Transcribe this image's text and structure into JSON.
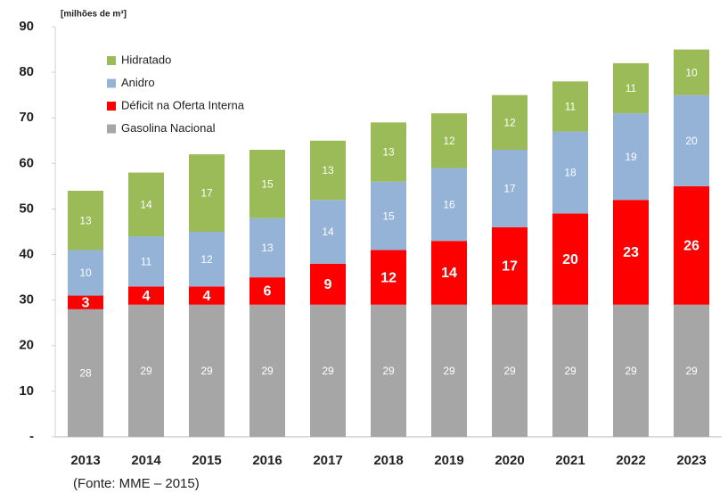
{
  "chart_data": {
    "type": "stacked_bar",
    "unit_label": "[milhões de m³]",
    "source": "(Fonte: MME – 2015)",
    "categories": [
      "2013",
      "2014",
      "2015",
      "2016",
      "2017",
      "2018",
      "2019",
      "2020",
      "2021",
      "2022",
      "2023"
    ],
    "series": [
      {
        "name": "Gasolina Nacional",
        "color": "#a6a6a6",
        "values": [
          28,
          29,
          29,
          29,
          29,
          29,
          29,
          29,
          29,
          29,
          29
        ]
      },
      {
        "name": "Déficit na Oferta Interna",
        "color": "#ff0000",
        "values": [
          3,
          4,
          4,
          6,
          9,
          12,
          14,
          17,
          20,
          23,
          26
        ]
      },
      {
        "name": "Anidro",
        "color": "#95b3d7",
        "values": [
          10,
          11,
          12,
          13,
          14,
          15,
          16,
          17,
          18,
          19,
          20
        ]
      },
      {
        "name": "Hidratado",
        "color": "#9bbb59",
        "values": [
          13,
          14,
          17,
          15,
          13,
          13,
          12,
          12,
          11,
          11,
          10
        ]
      }
    ],
    "ylim": [
      0,
      90
    ],
    "yticks": [
      {
        "value": 0,
        "label": "-"
      },
      10,
      20,
      30,
      40,
      50,
      60,
      70,
      80,
      90
    ],
    "grid": false,
    "legend": "top-left"
  }
}
